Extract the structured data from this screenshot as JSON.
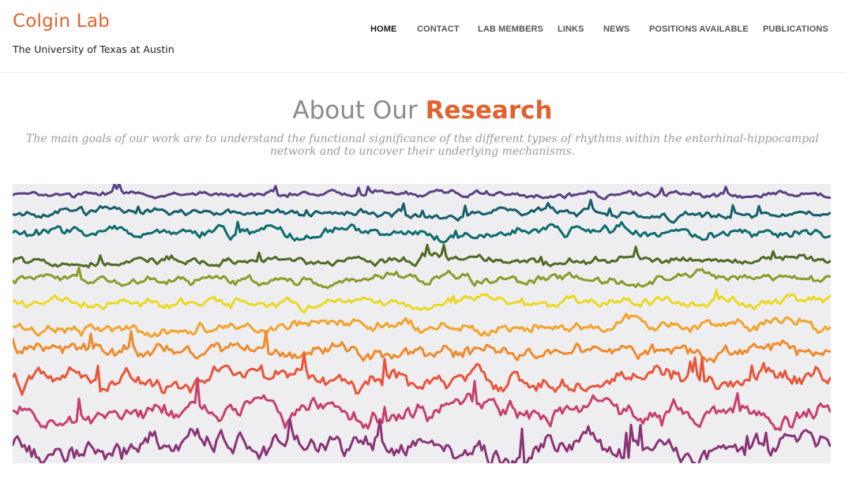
{
  "site": {
    "title": "Colgin Lab",
    "tagline": "The University of Texas at Austin"
  },
  "nav": {
    "items": [
      {
        "label": "HOME",
        "active": true
      },
      {
        "label": "CONTACT"
      },
      {
        "label": "LAB MEMBERS"
      },
      {
        "label": "LINKS"
      },
      {
        "label": "NEWS"
      },
      {
        "label": "POSITIONS AVAILABLE"
      },
      {
        "label": "PUBLICATIONS"
      }
    ]
  },
  "research": {
    "heading_plain": "About Our",
    "heading_accent": "Research",
    "intro": "The main goals of our work are to understand the functional significance of the different types of rhythms within the entorhinal-hippocampal network and to uncover their underlying mechanisms."
  },
  "colors": {
    "accent": "#e2622f",
    "trace_colors": [
      "#5b3f83",
      "#155e6a",
      "#0f6c6c",
      "#4f6a22",
      "#8c9a2a",
      "#e9d820",
      "#f2a32a",
      "#ef8a2a",
      "#e8553a",
      "#c8406a",
      "#8a3476"
    ]
  }
}
